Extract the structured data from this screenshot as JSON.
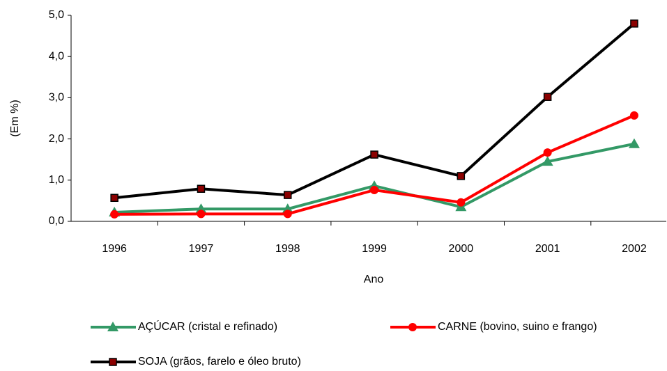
{
  "chart_data": {
    "type": "line",
    "x_label": "Ano",
    "y_label": "(Em %)",
    "categories": [
      "1996",
      "1997",
      "1998",
      "1999",
      "2000",
      "2001",
      "2002"
    ],
    "series": [
      {
        "name": "AÇÚCAR (cristal e refinado)",
        "color": "#339966",
        "marker": "triangle",
        "values": [
          0.22,
          0.3,
          0.3,
          0.86,
          0.35,
          1.45,
          1.88
        ]
      },
      {
        "name": "CARNE (bovino, suino e frango)",
        "color": "#ff0000",
        "marker": "circle",
        "values": [
          0.17,
          0.18,
          0.18,
          0.76,
          0.46,
          1.67,
          2.57
        ]
      },
      {
        "name": "SOJA (grãos, farelo e óleo bruto)",
        "color": "#000000",
        "marker": "square",
        "values": [
          0.57,
          0.79,
          0.64,
          1.62,
          1.1,
          3.02,
          4.8
        ]
      }
    ],
    "ylim": [
      0,
      5
    ],
    "yticks": [
      {
        "value": 0,
        "label": "0,0"
      },
      {
        "value": 1,
        "label": "1,0"
      },
      {
        "value": 2,
        "label": "2,0"
      },
      {
        "value": 3,
        "label": "3,0"
      },
      {
        "value": 4,
        "label": "4,0"
      },
      {
        "value": 5,
        "label": "5,0"
      }
    ],
    "grid": false,
    "legend": "bottom"
  }
}
